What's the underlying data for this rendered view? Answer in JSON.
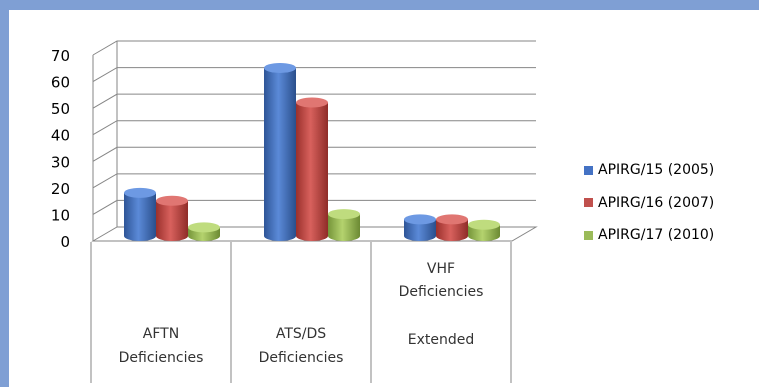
{
  "chart_data": {
    "type": "bar",
    "categories": [
      [
        "AFTN",
        "Deficiencies"
      ],
      [
        "ATS/DS",
        "Deficiencies"
      ],
      [
        "VHF",
        "Deficiencies",
        "",
        "Extended"
      ]
    ],
    "series": [
      {
        "name": "APIRG/15 (2005)",
        "values": [
          17,
          64,
          7
        ],
        "color": "#4472c4"
      },
      {
        "name": "APIRG/16 (2007)",
        "values": [
          14,
          51,
          7
        ],
        "color": "#c0504d"
      },
      {
        "name": "APIRG/17 (2010)",
        "values": [
          4,
          9,
          5
        ],
        "color": "#9bbb59"
      }
    ],
    "ylim": [
      0,
      70
    ],
    "yticks": [
      0,
      10,
      20,
      30,
      40,
      50,
      60,
      70
    ],
    "grid": true,
    "style": "3d-cylinder",
    "legend_position": "right"
  }
}
